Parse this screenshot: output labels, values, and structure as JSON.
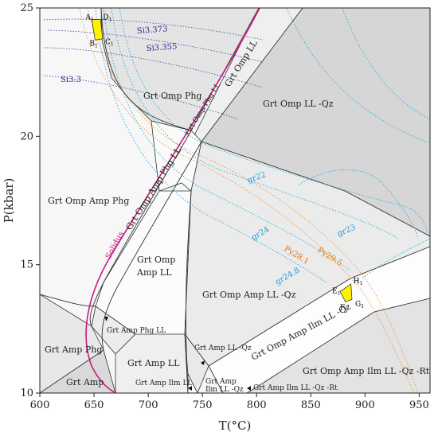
{
  "axes": {
    "x_title": "T(°C)",
    "y_title": "P(kbar)",
    "x_ticks": [
      "600",
      "650",
      "700",
      "750",
      "800",
      "850",
      "900",
      "950"
    ],
    "y_ticks": [
      "10",
      "15",
      "20",
      "25"
    ],
    "xlim": [
      600,
      960
    ],
    "ylim": [
      10,
      25
    ]
  },
  "fields": {
    "grt_omp_phg": "Grt Omp Phg",
    "grt_omp_ll_top": "Grt Omp LL",
    "grt_omp_ll_qz": "Grt Omp LL -Qz",
    "grt_omp_phg_ll": "Grt Omp Phg LL",
    "grt_omp_amp_phg_ll": "Grt Omp Amp Phg LL",
    "grt_omp_amp_phg": "Grt Omp Amp Phg",
    "grt_omp_amp_ll_1": "Grt Omp",
    "grt_omp_amp_ll_2": "Amp LL",
    "grt_omp_amp_ll_qz": "Grt Omp Amp LL -Qz",
    "grt_omp_amp_ilm_ll_qz": "Grt Omp Amp Ilm LL -Qz",
    "grt_omp_amp_ilm_ll_qz_rt": "Grt Omp Amp Ilm LL -Qz -Rt",
    "grt_amp_phg_ll": "Grt Amp Phg LL",
    "grt_amp_phg": "Grt Amp Phg",
    "grt_amp_ll": "Grt Amp LL",
    "grt_amp_ll_qz": "Grt Amp LL -Qz",
    "grt_amp_ilm_ll": "Grt Amp Ilm LL",
    "grt_amp_ilm_ll_qz_1": "Grt Amp",
    "grt_amp_ilm_ll_qz_2": "Ilm LL -Qz",
    "grt_amp_ilm_ll_qz_rt": "Grt Amp Ilm LL -Qz -Rt",
    "grt_amp": "Grt Amp",
    "solidus": "Solidus"
  },
  "isopleths": {
    "si": [
      "Si3.373",
      "Si3.355",
      "Si3.3"
    ],
    "gr": [
      "gr22",
      "gr23",
      "gr24",
      "gr24.8"
    ],
    "py": [
      "Py28.1",
      "Py29.5"
    ]
  },
  "points": {
    "A": {
      "letter": "A",
      "sub": "1",
      "T": 648,
      "P": 24.55
    },
    "D": {
      "letter": "D",
      "sub": "1",
      "T": 656,
      "P": 24.55
    },
    "B": {
      "letter": "B",
      "sub": "1",
      "T": 651,
      "P": 23.75
    },
    "C": {
      "letter": "C",
      "sub": "1",
      "T": 658,
      "P": 23.8
    },
    "E": {
      "letter": "E",
      "sub": "1",
      "T": 877,
      "P": 13.95
    },
    "H": {
      "letter": "H",
      "sub": "1",
      "T": 887,
      "P": 14.25
    },
    "F": {
      "letter": "F",
      "sub": "1",
      "T": 882,
      "P": 13.55
    },
    "G": {
      "letter": "G",
      "sub": "1",
      "T": 888,
      "P": 13.65
    }
  },
  "colors": {
    "solidus": "#c8197f",
    "si_isopleth": "#3a3fa0",
    "gr_isopleth": "#20a8d8",
    "py_isopleth": "#f08a20",
    "highlight_box": "#fff200",
    "field_light": "#f4f4f4",
    "field_mid": "#e6e6e6",
    "field_dark": "#d3d3d3"
  }
}
